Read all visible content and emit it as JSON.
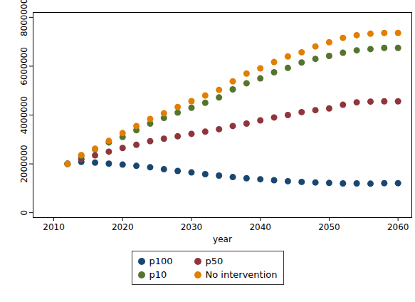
{
  "chart_data": {
    "type": "scatter",
    "x_label": "year",
    "x": [
      2012,
      2014,
      2016,
      2018,
      2020,
      2022,
      2024,
      2026,
      2028,
      2030,
      2032,
      2034,
      2036,
      2038,
      2040,
      2042,
      2044,
      2046,
      2048,
      2050,
      2052,
      2054,
      2056,
      2058,
      2060
    ],
    "series": [
      {
        "name": "p100",
        "color": "#1a476f",
        "values": [
          2000000,
          2080000,
          2050000,
          2010000,
          1970000,
          1920000,
          1860000,
          1780000,
          1710000,
          1650000,
          1580000,
          1520000,
          1460000,
          1410000,
          1370000,
          1330000,
          1290000,
          1260000,
          1240000,
          1220000,
          1200000,
          1200000,
          1190000,
          1210000,
          1210000
        ]
      },
      {
        "name": "p50",
        "color": "#90353b",
        "values": [
          2000000,
          2200000,
          2350000,
          2500000,
          2650000,
          2780000,
          2930000,
          3030000,
          3130000,
          3230000,
          3320000,
          3420000,
          3550000,
          3650000,
          3780000,
          3900000,
          4000000,
          4120000,
          4200000,
          4270000,
          4420000,
          4520000,
          4550000,
          4560000,
          4560000
        ]
      },
      {
        "name": "p10",
        "color": "#55752f",
        "values": [
          2000000,
          2330000,
          2600000,
          2880000,
          3100000,
          3380000,
          3650000,
          3880000,
          4100000,
          4300000,
          4500000,
          4720000,
          5050000,
          5300000,
          5500000,
          5750000,
          5930000,
          6150000,
          6300000,
          6420000,
          6550000,
          6650000,
          6700000,
          6750000,
          6750000
        ]
      },
      {
        "name": "No intervention",
        "color": "#e37e00",
        "values": [
          2000000,
          2360000,
          2620000,
          2940000,
          3260000,
          3550000,
          3840000,
          4070000,
          4330000,
          4570000,
          4800000,
          5030000,
          5380000,
          5700000,
          5910000,
          6170000,
          6400000,
          6570000,
          6810000,
          6980000,
          7160000,
          7270000,
          7330000,
          7360000,
          7360000
        ]
      }
    ],
    "xlim": [
      2007,
      2062
    ],
    "xticks": [
      2010,
      2020,
      2030,
      2040,
      2050,
      2060
    ],
    "ylim": [
      -200000,
      8200000
    ],
    "yticks": [
      0,
      2000000,
      4000000,
      6000000,
      8000000
    ],
    "marker": "circle",
    "grid": false,
    "legend": "bottom"
  }
}
